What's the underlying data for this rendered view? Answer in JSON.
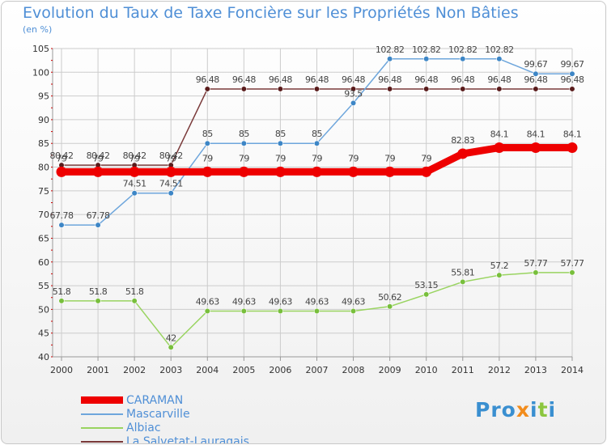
{
  "title": "Evolution du Taux de Taxe Foncière sur les Propriétés Non Bâties",
  "unit": "(en %)",
  "logo": "Proxiti",
  "colors": {
    "title": "#4f8fd6",
    "grid": "#cccccc",
    "axis": "#999999"
  },
  "chart_data": {
    "type": "line",
    "title": "Evolution du Taux de Taxe Foncière sur les Propriétés Non Bâties",
    "ylabel": "(en %)",
    "ylim": [
      40,
      105
    ],
    "yticks": [
      40,
      45,
      50,
      55,
      60,
      65,
      70,
      75,
      80,
      85,
      90,
      95,
      100,
      105
    ],
    "categories": [
      "2000",
      "2001",
      "2002",
      "2003",
      "2004",
      "2005",
      "2006",
      "2007",
      "2008",
      "2009",
      "2010",
      "2011",
      "2012",
      "2013",
      "2014"
    ],
    "series": [
      {
        "name": "CARAMAN",
        "color": "#ee0000",
        "width": "thick",
        "values": [
          79,
          79,
          79,
          79,
          79,
          79,
          79,
          79,
          79,
          79,
          79,
          82.83,
          84.1,
          84.1,
          84.1
        ],
        "labels": [
          "79",
          "79",
          "79",
          "79",
          "79",
          "79",
          "79",
          "79",
          "79",
          "79",
          "79",
          "82.83",
          "84.1",
          "84.1",
          "84.1"
        ]
      },
      {
        "name": "Mascarville",
        "color": "#6ea6dc",
        "marker": "#3d86c6",
        "width": "thin",
        "values": [
          67.78,
          67.78,
          74.51,
          74.51,
          85,
          85,
          85,
          85,
          93.5,
          102.82,
          102.82,
          102.82,
          102.82,
          99.67,
          99.67
        ],
        "labels": [
          "67.78",
          "67.78",
          "74.51",
          "74.51",
          "85",
          "85",
          "85",
          "85",
          "93.5",
          "102.82",
          "102.82",
          "102.82",
          "102.82",
          "99.67",
          "99.67"
        ]
      },
      {
        "name": "Albiac",
        "color": "#99d460",
        "marker": "#78bf3c",
        "width": "thin",
        "values": [
          51.8,
          51.8,
          51.8,
          42,
          49.63,
          49.63,
          49.63,
          49.63,
          49.63,
          50.62,
          53.15,
          55.81,
          57.2,
          57.77,
          57.77
        ],
        "labels": [
          "51.8",
          "51.8",
          "51.8",
          "42",
          "49.63",
          "49.63",
          "49.63",
          "49.63",
          "49.63",
          "50.62",
          "53.15",
          "55.81",
          "57.2",
          "57.77",
          "57.77"
        ]
      },
      {
        "name": "La Salvetat-Lauragais",
        "color": "#7a3a3a",
        "marker": "#5a1c1c",
        "width": "thin",
        "values": [
          80.42,
          80.42,
          80.42,
          80.42,
          96.48,
          96.48,
          96.48,
          96.48,
          96.48,
          96.48,
          96.48,
          96.48,
          96.48,
          96.48,
          96.48
        ],
        "labels": [
          "80.42",
          "80.42",
          "80.42",
          "80.42",
          "96.48",
          "96.48",
          "96.48",
          "96.48",
          "96.48",
          "96.48",
          "96.48",
          "96.48",
          "96.48",
          "96.48",
          "96.48"
        ]
      }
    ],
    "legend": [
      "CARAMAN",
      "Mascarville",
      "Albiac",
      "La Salvetat-Lauragais"
    ]
  }
}
